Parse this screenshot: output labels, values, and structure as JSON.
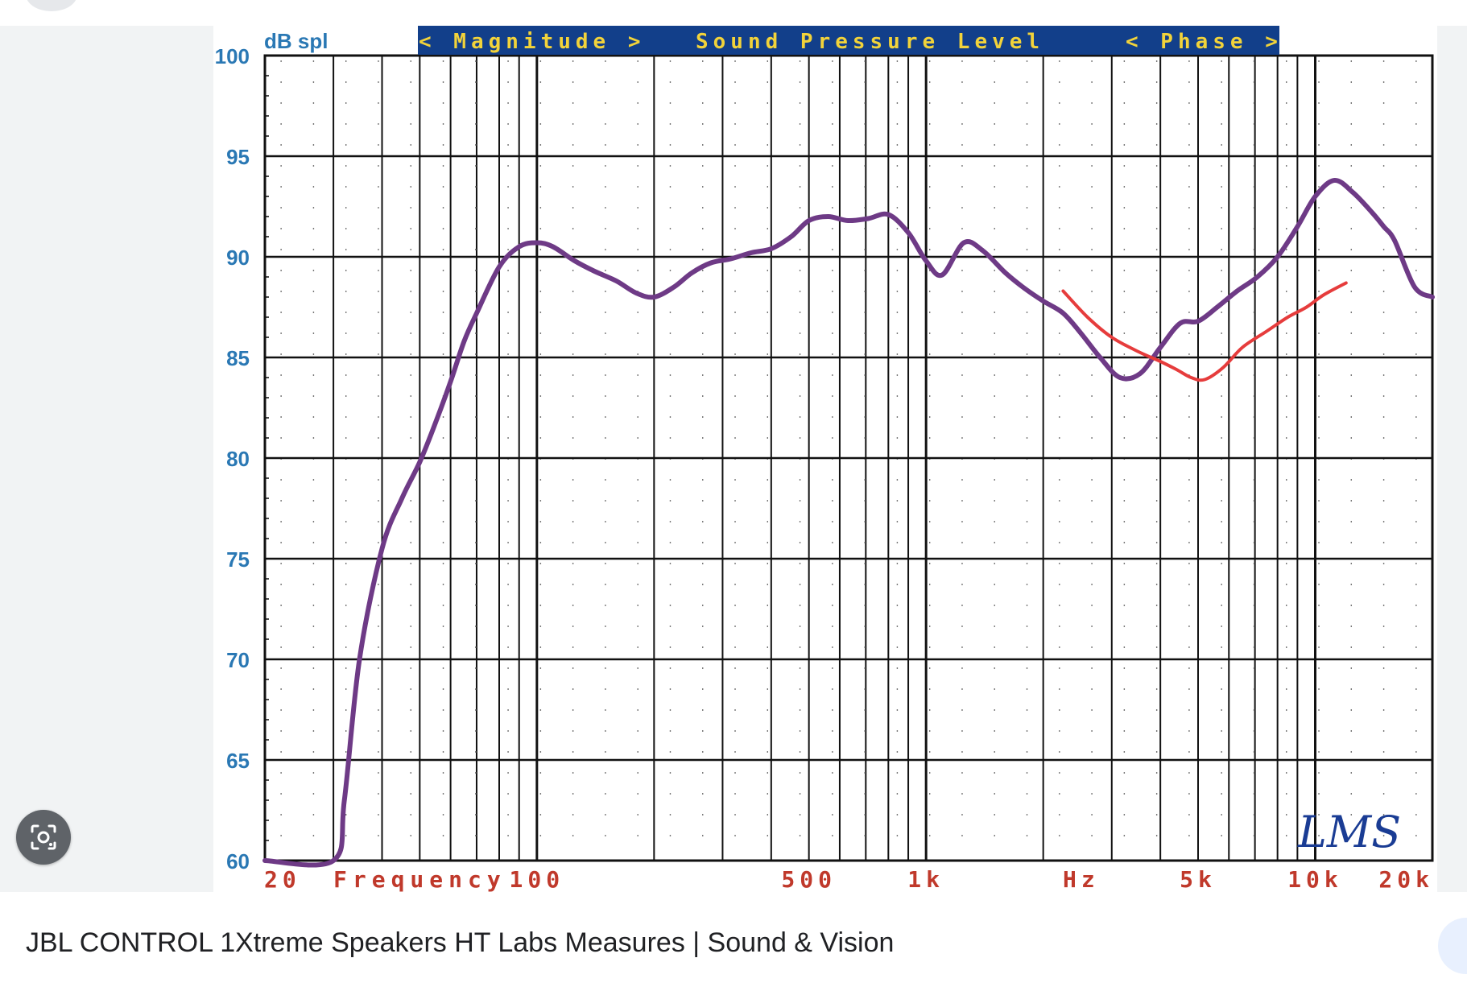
{
  "caption": "JBL CONTROL 1Xtreme Speakers HT Labs Measures | Sound & Vision",
  "icons": {
    "lens": "google-lens-icon"
  },
  "chart_data": {
    "type": "line",
    "title": "Sound Pressure Level",
    "header_left": "< Magnitude >",
    "header_right": "< Phase >",
    "ylabel": "dB spl",
    "xlabel": "Frequency",
    "x_unit_label": "Hz",
    "x_scale": "log",
    "xlim": [
      20,
      20000
    ],
    "ylim": [
      60,
      100
    ],
    "y_ticks": [
      100,
      95,
      90,
      85,
      80,
      75,
      70,
      65,
      60
    ],
    "x_tick_labels": [
      {
        "value": 20,
        "label": "20"
      },
      {
        "value": 100,
        "label": "100"
      },
      {
        "value": 500,
        "label": "500"
      },
      {
        "value": 1000,
        "label": "1k"
      },
      {
        "value": 5000,
        "label": "5k"
      },
      {
        "value": 10000,
        "label": "10k"
      },
      {
        "value": 20000,
        "label": "20k"
      }
    ],
    "watermark": "LMS",
    "grid": true,
    "colors": {
      "series": "#6e3a86",
      "annotation": "#e63c3c",
      "y_labels": "#2a78b4",
      "x_labels": "#c0392b",
      "header_bg": "#123f8a",
      "header_text": "#f2d33a",
      "watermark": "#1a3c94"
    },
    "series": [
      {
        "x": [
          20,
          30,
          32,
          35,
          40,
          45,
          50,
          55,
          60,
          65,
          70,
          80,
          90,
          100,
          110,
          125,
          140,
          160,
          180,
          200,
          225,
          250,
          280,
          315,
          355,
          400,
          450,
          500,
          560,
          630,
          710,
          800,
          900,
          1000,
          1100,
          1250,
          1400,
          1600,
          1800,
          2000,
          2250,
          2500,
          2800,
          3150,
          3550,
          4000,
          4500,
          5000,
          5600,
          6300,
          7100,
          8000,
          9000,
          10000,
          11200,
          12500,
          14000,
          15000,
          16000,
          18000,
          20000
        ],
        "y": [
          60,
          60,
          63,
          70,
          75.5,
          78,
          79.8,
          81.8,
          83.8,
          85.8,
          87.2,
          89.5,
          90.5,
          90.7,
          90.5,
          89.8,
          89.3,
          88.8,
          88.2,
          88.0,
          88.5,
          89.2,
          89.7,
          89.9,
          90.2,
          90.4,
          91.0,
          91.8,
          92.0,
          91.8,
          91.9,
          92.1,
          91.2,
          89.8,
          89.1,
          90.7,
          90.3,
          89.2,
          88.4,
          87.8,
          87.2,
          86.2,
          85.0,
          84.0,
          84.2,
          85.5,
          86.7,
          86.8,
          87.5,
          88.3,
          89.0,
          90.0,
          91.5,
          93.0,
          93.8,
          93.2,
          92.2,
          91.5,
          90.8,
          88.5,
          88.0
        ]
      }
    ],
    "annotation_stroke": {
      "x": [
        2250,
        2600,
        3000,
        3500,
        4000,
        4400,
        4800,
        5200,
        5800,
        6500,
        7500,
        8500,
        9500,
        10500,
        12000
      ],
      "y": [
        88.3,
        87.0,
        86.0,
        85.3,
        84.8,
        84.4,
        84.0,
        83.9,
        84.5,
        85.5,
        86.3,
        87.0,
        87.5,
        88.1,
        88.7
      ]
    }
  }
}
